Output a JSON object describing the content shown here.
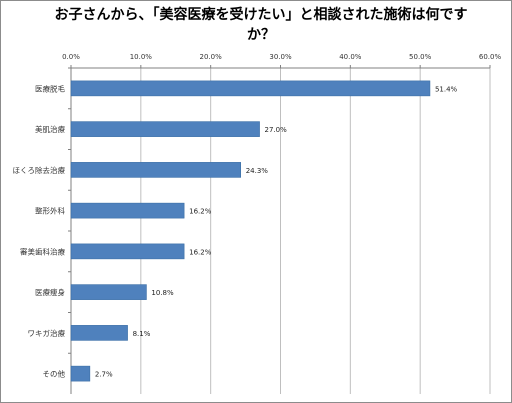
{
  "chart_data": {
    "type": "bar",
    "orientation": "horizontal",
    "title": "お子さんから、「美容医療を受けたい」と相談された施術は何ですか？",
    "title_lines": [
      "お子さんから、「美容医療を受けたい」と相談された施術は何です",
      "か？"
    ],
    "categories": [
      "医療脱毛",
      "美肌治療",
      "ほくろ除去治療",
      "整形外科",
      "審美歯科治療",
      "医療痩身",
      "ワキガ治療",
      "その他"
    ],
    "values": [
      51.4,
      27.0,
      24.3,
      16.2,
      16.2,
      10.8,
      8.1,
      2.7
    ],
    "value_labels": [
      "51.4%",
      "27.0%",
      "24.3%",
      "16.2%",
      "16.2%",
      "10.8%",
      "8.1%",
      "2.7%"
    ],
    "xlim": [
      0,
      60
    ],
    "ticks": [
      0,
      10,
      20,
      30,
      40,
      50,
      60
    ],
    "tick_labels": [
      "0.0%",
      "10.0%",
      "20.0%",
      "30.0%",
      "40.0%",
      "50.0%",
      "60.0%"
    ],
    "axis_position": "top",
    "grid": true,
    "legend": "none",
    "bar_color": "#4f81bd",
    "bar_edge_color": "#3a6ea5",
    "grid_color": "#bfbfbf",
    "axis_color": "#808080"
  }
}
